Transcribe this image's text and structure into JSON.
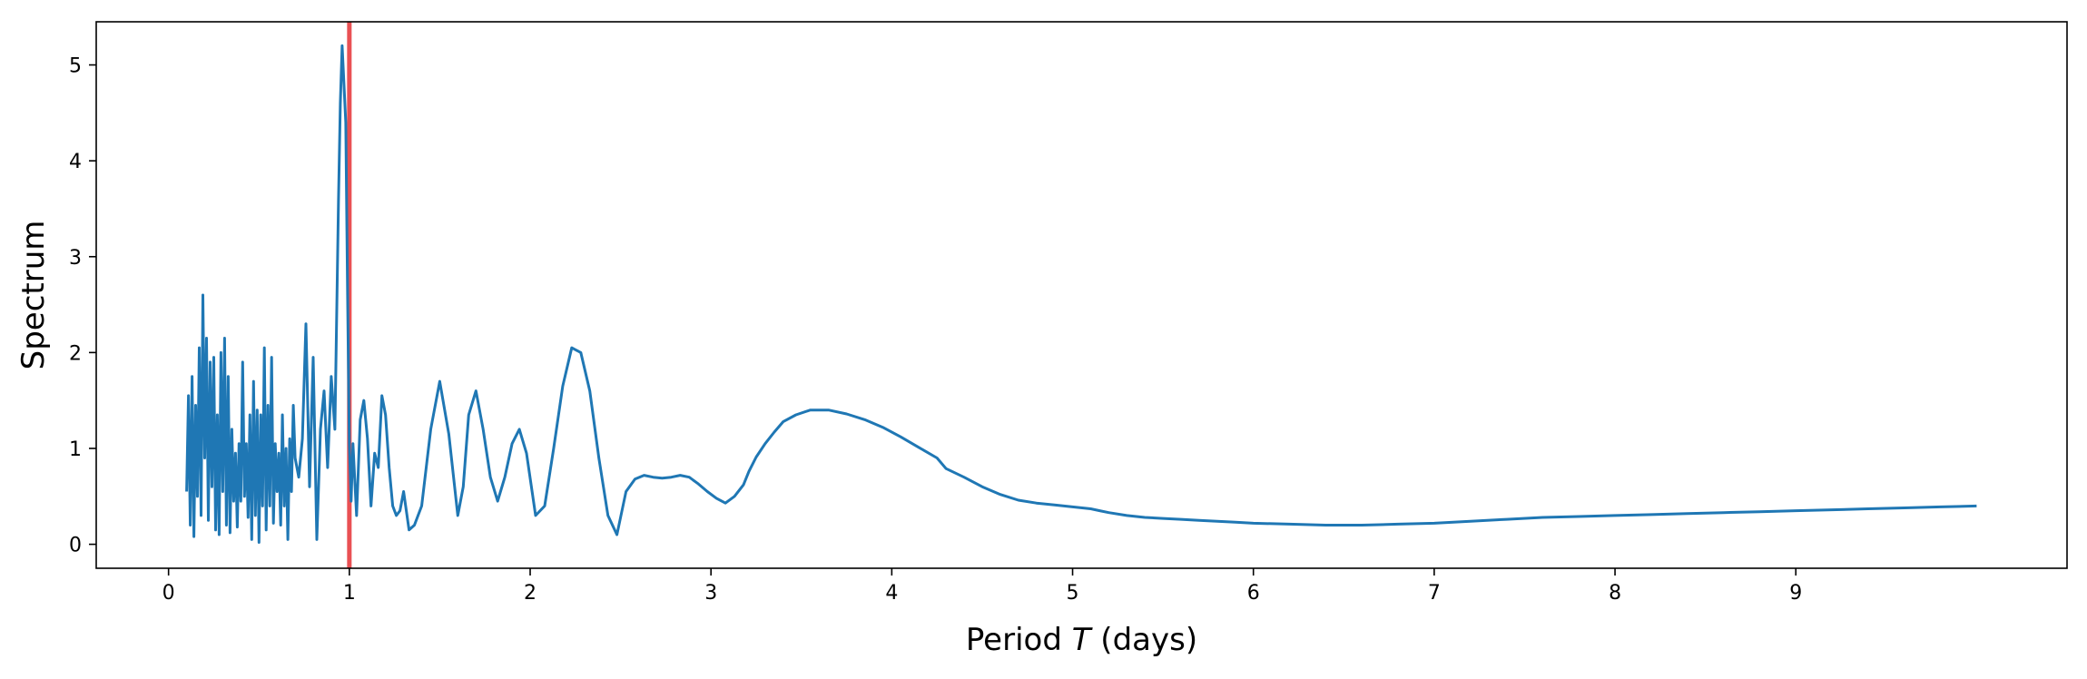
{
  "chart_data": {
    "type": "line",
    "xlabel_parts": [
      "Period ",
      "T",
      " (days)"
    ],
    "ylabel": "Spectrum",
    "xlim": [
      -0.4,
      10.5
    ],
    "ylim": [
      -0.25,
      5.45
    ],
    "xticks": [
      0,
      1,
      2,
      3,
      4,
      5,
      6,
      7,
      8,
      9
    ],
    "xtick_labels": [
      "0",
      "1",
      "2",
      "3",
      "4",
      "5",
      "6",
      "7",
      "8",
      "9"
    ],
    "yticks": [
      0,
      1,
      2,
      3,
      4,
      5
    ],
    "ytick_labels": [
      "0",
      "1",
      "2",
      "3",
      "4",
      "5"
    ],
    "grid": false,
    "reference_line": {
      "x": 1.0,
      "color": "#e8474a"
    },
    "series": [
      {
        "color": "#1f77b4",
        "x": [
          0.1,
          0.11,
          0.12,
          0.13,
          0.14,
          0.15,
          0.16,
          0.17,
          0.18,
          0.19,
          0.2,
          0.21,
          0.22,
          0.23,
          0.24,
          0.25,
          0.26,
          0.27,
          0.28,
          0.29,
          0.3,
          0.31,
          0.32,
          0.33,
          0.34,
          0.35,
          0.36,
          0.37,
          0.38,
          0.39,
          0.4,
          0.41,
          0.42,
          0.43,
          0.44,
          0.45,
          0.46,
          0.47,
          0.48,
          0.49,
          0.5,
          0.51,
          0.52,
          0.53,
          0.54,
          0.55,
          0.56,
          0.57,
          0.58,
          0.59,
          0.6,
          0.61,
          0.62,
          0.63,
          0.64,
          0.65,
          0.66,
          0.67,
          0.68,
          0.69,
          0.7,
          0.72,
          0.74,
          0.76,
          0.78,
          0.8,
          0.82,
          0.84,
          0.86,
          0.88,
          0.9,
          0.92,
          0.94,
          0.95,
          0.96,
          0.98,
          0.99,
          1.0,
          1.01,
          1.02,
          1.04,
          1.06,
          1.08,
          1.1,
          1.12,
          1.14,
          1.16,
          1.18,
          1.2,
          1.22,
          1.24,
          1.26,
          1.28,
          1.3,
          1.33,
          1.36,
          1.4,
          1.45,
          1.5,
          1.55,
          1.6,
          1.63,
          1.66,
          1.7,
          1.74,
          1.78,
          1.82,
          1.86,
          1.9,
          1.94,
          1.98,
          2.03,
          2.08,
          2.13,
          2.18,
          2.23,
          2.28,
          2.33,
          2.38,
          2.43,
          2.48,
          2.53,
          2.58,
          2.63,
          2.68,
          2.73,
          2.78,
          2.83,
          2.88,
          2.93,
          2.98,
          3.03,
          3.08,
          3.13,
          3.18,
          3.21,
          3.25,
          3.3,
          3.35,
          3.4,
          3.47,
          3.55,
          3.65,
          3.75,
          3.85,
          3.95,
          4.05,
          4.15,
          4.25,
          4.3,
          4.4,
          4.5,
          4.6,
          4.7,
          4.8,
          4.9,
          5.0,
          5.1,
          5.15,
          5.2,
          5.3,
          5.4,
          5.5,
          5.6,
          5.7,
          5.8,
          5.9,
          6.0,
          6.2,
          6.4,
          6.6,
          6.8,
          7.0,
          7.2,
          7.4,
          7.6,
          7.8,
          8.0,
          8.2,
          8.4,
          8.6,
          8.8,
          9.0,
          9.2,
          9.4,
          9.6,
          9.8,
          10.0
        ],
        "y": [
          0.55,
          1.55,
          0.2,
          1.75,
          0.08,
          1.45,
          0.5,
          2.05,
          0.3,
          2.6,
          0.9,
          2.15,
          0.25,
          1.9,
          0.6,
          1.95,
          0.15,
          1.35,
          0.1,
          2.0,
          0.55,
          2.15,
          0.2,
          1.75,
          0.12,
          1.2,
          0.45,
          0.95,
          0.18,
          1.05,
          0.45,
          1.9,
          0.5,
          1.05,
          0.28,
          1.35,
          0.05,
          1.7,
          0.3,
          1.4,
          0.02,
          1.35,
          0.4,
          2.05,
          0.15,
          1.45,
          0.4,
          1.95,
          0.22,
          1.05,
          0.55,
          0.95,
          0.2,
          1.35,
          0.4,
          1.0,
          0.05,
          1.1,
          0.55,
          1.45,
          0.9,
          0.7,
          1.1,
          2.3,
          0.6,
          1.95,
          0.05,
          1.2,
          1.6,
          0.8,
          1.75,
          1.2,
          3.6,
          4.6,
          5.2,
          4.4,
          2.6,
          1.05,
          0.45,
          1.05,
          0.3,
          1.3,
          1.5,
          1.1,
          0.4,
          0.95,
          0.8,
          1.55,
          1.35,
          0.8,
          0.4,
          0.3,
          0.35,
          0.55,
          0.15,
          0.2,
          0.4,
          1.2,
          1.7,
          1.15,
          0.3,
          0.6,
          1.35,
          1.6,
          1.2,
          0.7,
          0.45,
          0.7,
          1.05,
          1.2,
          0.95,
          0.3,
          0.4,
          1.0,
          1.65,
          2.05,
          2.0,
          1.6,
          0.9,
          0.3,
          0.1,
          0.55,
          0.68,
          0.72,
          0.7,
          0.69,
          0.7,
          0.72,
          0.7,
          0.63,
          0.55,
          0.48,
          0.43,
          0.5,
          0.62,
          0.76,
          0.91,
          1.05,
          1.17,
          1.28,
          1.35,
          1.4,
          1.4,
          1.36,
          1.3,
          1.22,
          1.12,
          1.01,
          0.9,
          0.79,
          0.7,
          0.6,
          0.52,
          0.46,
          0.43,
          0.41,
          0.39,
          0.37,
          0.35,
          0.33,
          0.3,
          0.28,
          0.27,
          0.26,
          0.25,
          0.24,
          0.23,
          0.22,
          0.21,
          0.2,
          0.2,
          0.21,
          0.22,
          0.24,
          0.26,
          0.28,
          0.29,
          0.3,
          0.31,
          0.32,
          0.33,
          0.34,
          0.35,
          0.36,
          0.37,
          0.38,
          0.39,
          0.4
        ]
      }
    ]
  }
}
